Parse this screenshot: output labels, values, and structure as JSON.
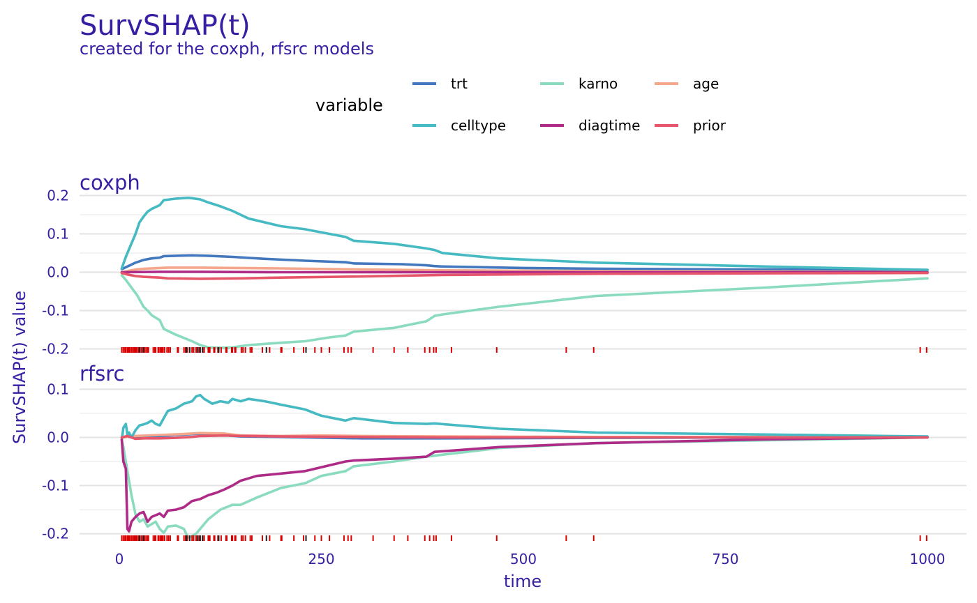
{
  "chart_data": {
    "type": "line",
    "title": "SurvSHAP(t)",
    "subtitle": "created for the coxph, rfsrc models",
    "xlabel": "time",
    "ylabel": "SurvSHAP(t) value",
    "legend": {
      "title": "variable",
      "placement": "top",
      "entries": [
        {
          "name": "trt",
          "color": "#4378bf"
        },
        {
          "name": "karno",
          "color": "#8bdcbe"
        },
        {
          "name": "age",
          "color": "#f5a78c"
        },
        {
          "name": "celltype",
          "color": "#46bac2"
        },
        {
          "name": "diagtime",
          "color": "#ae2c87"
        },
        {
          "name": "prior",
          "color": "#e6566b"
        }
      ]
    },
    "x_ticks": [
      0,
      250,
      500,
      750,
      1000
    ],
    "x_tick_labels": [
      "0",
      "250",
      "500",
      "750",
      "1000"
    ],
    "xlim": [
      -15,
      1050
    ],
    "grid": true,
    "event_times": [
      3,
      5,
      7,
      8,
      10,
      11,
      12,
      13,
      15,
      16,
      18,
      19,
      20,
      21,
      22,
      24,
      25,
      27,
      29,
      30,
      31,
      33,
      35,
      36,
      42,
      44,
      45,
      48,
      49,
      51,
      52,
      53,
      54,
      56,
      59,
      61,
      63,
      72,
      73,
      80,
      82,
      84,
      87,
      90,
      92,
      95,
      97,
      99,
      100,
      103,
      105,
      110,
      111,
      112,
      117,
      118,
      122,
      126,
      132,
      133,
      139,
      140,
      143,
      144,
      151,
      153,
      156,
      162,
      164,
      177,
      186,
      200,
      201,
      216,
      228,
      231,
      242,
      250,
      260,
      278,
      283,
      287,
      314,
      340,
      357,
      378,
      384,
      389,
      392,
      411,
      467,
      553,
      587,
      991,
      999
    ],
    "censored_times": [
      25,
      30,
      83,
      87,
      97,
      100,
      103,
      123,
      182,
      231
    ],
    "panels": [
      {
        "label": "coxph",
        "ylim": [
          -0.21,
          0.21
        ],
        "y_ticks": [
          -0.2,
          -0.1,
          0.0,
          0.1,
          0.2
        ],
        "y_tick_labels": [
          "-0.2",
          "-0.1",
          "0.0",
          "0.1",
          "0.2"
        ],
        "series": [
          {
            "name": "trt",
            "x": [
              3,
              10,
              20,
              30,
              40,
              50,
              55,
              70,
              90,
              110,
              140,
              180,
              230,
              280,
              290,
              350,
              380,
              390,
              400,
              500,
              600,
              800,
              1000
            ],
            "values": [
              0.008,
              0.015,
              0.025,
              0.032,
              0.036,
              0.038,
              0.042,
              0.043,
              0.044,
              0.043,
              0.04,
              0.035,
              0.03,
              0.026,
              0.023,
              0.021,
              0.018,
              0.016,
              0.015,
              0.011,
              0.009,
              0.007,
              0.006
            ]
          },
          {
            "name": "karno",
            "x": [
              3,
              8,
              15,
              22,
              30,
              35,
              40,
              50,
              55,
              70,
              90,
              100,
              110,
              125,
              140,
              160,
              200,
              230,
              260,
              280,
              290,
              340,
              380,
              390,
              400,
              470,
              590,
              800,
              1000
            ],
            "values": [
              -0.008,
              -0.02,
              -0.04,
              -0.06,
              -0.09,
              -0.1,
              -0.112,
              -0.125,
              -0.148,
              -0.163,
              -0.18,
              -0.19,
              -0.196,
              -0.197,
              -0.196,
              -0.19,
              -0.184,
              -0.18,
              -0.17,
              -0.165,
              -0.155,
              -0.145,
              -0.128,
              -0.114,
              -0.11,
              -0.09,
              -0.062,
              -0.04,
              -0.016
            ]
          },
          {
            "name": "age",
            "x": [
              3,
              10,
              20,
              30,
              50,
              60,
              100,
              200,
              300,
              400,
              600,
              800,
              1000
            ],
            "values": [
              0.0,
              0.003,
              0.007,
              0.009,
              0.011,
              0.012,
              0.012,
              0.01,
              0.007,
              0.005,
              0.003,
              0.002,
              0.0
            ]
          },
          {
            "name": "celltype",
            "x": [
              3,
              8,
              12,
              20,
              25,
              30,
              35,
              40,
              45,
              50,
              55,
              70,
              85,
              90,
              100,
              110,
              125,
              140,
              160,
              200,
              230,
              260,
              280,
              290,
              340,
              380,
              390,
              400,
              470,
              590,
              800,
              1000
            ],
            "values": [
              0.01,
              0.04,
              0.06,
              0.1,
              0.13,
              0.145,
              0.158,
              0.165,
              0.17,
              0.175,
              0.188,
              0.192,
              0.194,
              0.193,
              0.19,
              0.182,
              0.172,
              0.16,
              0.14,
              0.12,
              0.112,
              0.1,
              0.092,
              0.082,
              0.074,
              0.062,
              0.058,
              0.05,
              0.036,
              0.025,
              0.015,
              0.006
            ]
          },
          {
            "name": "diagtime",
            "x": [
              3,
              50,
              100,
              200,
              400,
              600,
              800,
              1000
            ],
            "values": [
              0.0,
              0.001,
              0.001,
              0.0,
              0.0,
              0.0,
              0.0,
              0.0
            ]
          },
          {
            "name": "prior",
            "x": [
              3,
              10,
              20,
              30,
              50,
              60,
              100,
              150,
              200,
              300,
              400,
              600,
              800,
              1000
            ],
            "values": [
              -0.002,
              -0.006,
              -0.01,
              -0.012,
              -0.014,
              -0.016,
              -0.017,
              -0.016,
              -0.014,
              -0.011,
              -0.007,
              -0.004,
              -0.003,
              -0.002
            ]
          }
        ]
      },
      {
        "label": "rfsrc",
        "ylim": [
          -0.215,
          0.115
        ],
        "y_ticks": [
          -0.2,
          -0.1,
          0.0,
          0.1
        ],
        "y_tick_labels": [
          "-0.2",
          "-0.1",
          "0.0",
          "0.1"
        ],
        "series": [
          {
            "name": "trt",
            "x": [
              3,
              10,
              20,
              30,
              50,
              70,
              100,
              120,
              150,
              200,
              300,
              400,
              600,
              800,
              1000
            ],
            "values": [
              0.0,
              0.002,
              -0.002,
              0.001,
              0.003,
              0.005,
              0.008,
              0.006,
              0.002,
              0.001,
              -0.002,
              -0.002,
              -0.001,
              0.0,
              0.0
            ]
          },
          {
            "name": "karno",
            "x": [
              3,
              5,
              8,
              12,
              15,
              20,
              25,
              30,
              35,
              40,
              45,
              50,
              55,
              60,
              70,
              80,
              85,
              90,
              95,
              100,
              110,
              125,
              140,
              150,
              170,
              200,
              230,
              250,
              280,
              290,
              340,
              380,
              390,
              470,
              590,
              800,
              1000
            ],
            "values": [
              -0.005,
              -0.02,
              -0.05,
              -0.09,
              -0.12,
              -0.16,
              -0.175,
              -0.17,
              -0.185,
              -0.18,
              -0.175,
              -0.19,
              -0.198,
              -0.185,
              -0.183,
              -0.19,
              -0.208,
              -0.205,
              -0.2,
              -0.19,
              -0.17,
              -0.15,
              -0.14,
              -0.14,
              -0.125,
              -0.105,
              -0.095,
              -0.08,
              -0.07,
              -0.06,
              -0.05,
              -0.04,
              -0.038,
              -0.022,
              -0.012,
              -0.006,
              0.0
            ]
          },
          {
            "name": "age",
            "x": [
              3,
              20,
              50,
              80,
              100,
              130,
              150,
              200,
              250,
              300,
              400,
              600,
              800,
              1000
            ],
            "values": [
              0.0,
              0.003,
              0.005,
              0.007,
              0.009,
              0.008,
              0.004,
              0.003,
              0.004,
              0.003,
              0.002,
              0.001,
              0.001,
              0.0
            ]
          },
          {
            "name": "celltype",
            "x": [
              3,
              5,
              8,
              10,
              12,
              15,
              20,
              25,
              30,
              35,
              40,
              45,
              50,
              55,
              60,
              70,
              75,
              80,
              90,
              95,
              100,
              105,
              115,
              125,
              135,
              140,
              150,
              160,
              180,
              200,
              230,
              250,
              280,
              290,
              340,
              380,
              390,
              470,
              590,
              800,
              1000
            ],
            "values": [
              -0.005,
              0.02,
              0.028,
              0.005,
              0.01,
              0.0,
              0.015,
              0.025,
              0.027,
              0.03,
              0.035,
              0.028,
              0.025,
              0.04,
              0.055,
              0.06,
              0.065,
              0.07,
              0.075,
              0.085,
              0.088,
              0.08,
              0.07,
              0.075,
              0.072,
              0.08,
              0.075,
              0.08,
              0.075,
              0.068,
              0.058,
              0.045,
              0.035,
              0.04,
              0.03,
              0.028,
              0.029,
              0.018,
              0.01,
              0.006,
              0.002
            ]
          },
          {
            "name": "diagtime",
            "x": [
              3,
              5,
              8,
              10,
              12,
              15,
              20,
              25,
              30,
              35,
              40,
              50,
              55,
              60,
              70,
              80,
              90,
              100,
              110,
              120,
              130,
              140,
              150,
              160,
              170,
              200,
              230,
              250,
              280,
              290,
              340,
              380,
              390,
              470,
              590,
              800,
              1000
            ],
            "values": [
              -0.005,
              -0.05,
              -0.065,
              -0.19,
              -0.195,
              -0.175,
              -0.165,
              -0.158,
              -0.155,
              -0.175,
              -0.165,
              -0.158,
              -0.165,
              -0.152,
              -0.15,
              -0.145,
              -0.132,
              -0.128,
              -0.12,
              -0.115,
              -0.108,
              -0.1,
              -0.09,
              -0.085,
              -0.08,
              -0.075,
              -0.07,
              -0.062,
              -0.05,
              -0.048,
              -0.044,
              -0.04,
              -0.03,
              -0.02,
              -0.012,
              -0.004,
              0.0
            ]
          },
          {
            "name": "prior",
            "x": [
              3,
              10,
              20,
              30,
              50,
              70,
              90,
              100,
              130,
              150,
              200,
              300,
              400,
              600,
              800,
              1000
            ],
            "values": [
              0.0,
              0.003,
              -0.003,
              -0.002,
              -0.002,
              -0.001,
              0.001,
              0.003,
              0.004,
              0.003,
              0.002,
              0.001,
              0.0,
              0.0,
              0.0,
              0.0
            ]
          }
        ]
      }
    ]
  }
}
